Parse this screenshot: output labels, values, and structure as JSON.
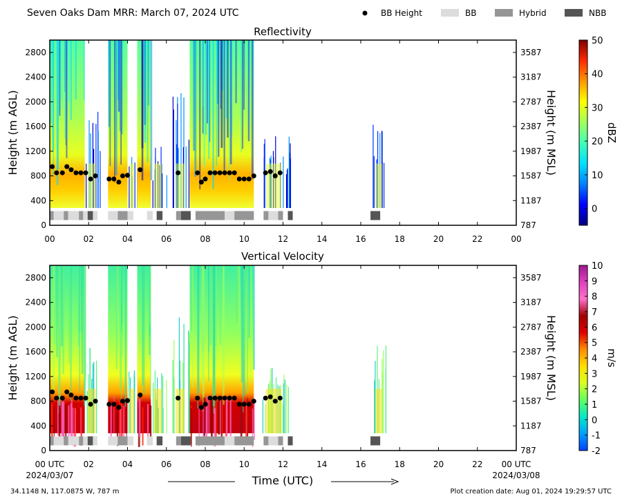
{
  "header": {
    "title": "Seven Oaks Dam MRR:  March 07, 2024 UTC",
    "legend": [
      {
        "label": "BB Height",
        "kind": "dot",
        "color": "#000000"
      },
      {
        "label": "BB",
        "kind": "box",
        "color": "#dcdcdc"
      },
      {
        "label": "Hybrid",
        "kind": "box",
        "color": "#969696"
      },
      {
        "label": "NBB",
        "kind": "box",
        "color": "#555555"
      }
    ]
  },
  "chart_data": [
    {
      "type": "heatmap",
      "title": "Reflectivity",
      "xlabel": "",
      "ylabel": "Height (m AGL)",
      "ylabel_right": "Height (m MSL)",
      "x_ticks": [
        "00",
        "02",
        "04",
        "06",
        "08",
        "10",
        "12",
        "14",
        "16",
        "18",
        "20",
        "22",
        "00"
      ],
      "xlim": [
        0,
        24
      ],
      "ylim": [
        0,
        3000
      ],
      "y_ticks_left": [
        0,
        400,
        800,
        1200,
        1600,
        2000,
        2400,
        2800
      ],
      "y_ticks_right": [
        787,
        1187,
        1587,
        1987,
        2387,
        2787,
        3187,
        3587
      ],
      "colorbar": {
        "label": "dBZ",
        "min": -5,
        "max": 50,
        "ticks": [
          0,
          10,
          20,
          30,
          40,
          50
        ],
        "colors": [
          "#00007f",
          "#0000ff",
          "#0080ff",
          "#00e0ff",
          "#40ffb8",
          "#a0ff5c",
          "#ffff00",
          "#ff9800",
          "#ff2a00",
          "#7f0000"
        ]
      },
      "echo_segments": [
        {
          "start": 0.0,
          "end": 1.8,
          "top": 3000,
          "kind": "dense"
        },
        {
          "start": 1.8,
          "end": 2.6,
          "top": 1850,
          "kind": "sparse"
        },
        {
          "start": 3.0,
          "end": 4.0,
          "top": 3000,
          "kind": "dense"
        },
        {
          "start": 4.0,
          "end": 4.5,
          "top": 1300,
          "kind": "sparse"
        },
        {
          "start": 4.5,
          "end": 5.2,
          "top": 3000,
          "kind": "dense"
        },
        {
          "start": 5.2,
          "end": 6.0,
          "top": 1300,
          "kind": "sparse"
        },
        {
          "start": 6.3,
          "end": 7.2,
          "top": 2300,
          "kind": "sparse"
        },
        {
          "start": 7.2,
          "end": 10.5,
          "top": 3000,
          "kind": "dense"
        },
        {
          "start": 10.8,
          "end": 12.4,
          "top": 1450,
          "kind": "sparse"
        },
        {
          "start": 16.6,
          "end": 17.3,
          "top": 1750,
          "kind": "sparse"
        }
      ]
    },
    {
      "type": "heatmap",
      "title": "Vertical Velocity",
      "xlabel": "Time (UTC)",
      "ylabel": "Height (m AGL)",
      "ylabel_right": "Height (m MSL)",
      "x_ticks": [
        "00 UTC",
        "02",
        "04",
        "06",
        "08",
        "10",
        "12",
        "14",
        "16",
        "18",
        "20",
        "22",
        "00 UTC"
      ],
      "x_dates_start": "2024/03/07",
      "x_dates_end": "2024/03/08",
      "xlim": [
        0,
        24
      ],
      "ylim": [
        0,
        3000
      ],
      "y_ticks_left": [
        0,
        400,
        800,
        1200,
        1600,
        2000,
        2400,
        2800
      ],
      "y_ticks_right": [
        787,
        1187,
        1587,
        1987,
        2387,
        2787,
        3187,
        3587
      ],
      "colorbar": {
        "label": "m/s",
        "min": -2,
        "max": 10,
        "ticks": [
          -2,
          -1,
          0,
          1,
          2,
          3,
          4,
          5,
          6,
          7,
          8,
          9,
          10
        ],
        "colors": [
          "#0040ff",
          "#00a0ff",
          "#00e8c8",
          "#60ff60",
          "#d8ff20",
          "#ffe000",
          "#ff8c00",
          "#e00000",
          "#a00000",
          "#ff70c8",
          "#e040c0",
          "#a01890"
        ]
      }
    }
  ],
  "bb_height": {
    "times": [
      0.13,
      0.35,
      0.65,
      0.88,
      1.1,
      1.35,
      1.6,
      1.85,
      2.1,
      2.35,
      3.05,
      3.3,
      3.55,
      3.75,
      4.0,
      4.65,
      6.6,
      7.6,
      7.8,
      8.0,
      8.25,
      8.5,
      8.75,
      9.0,
      9.25,
      9.5,
      9.75,
      10.0,
      10.25,
      10.5,
      11.1,
      11.35,
      11.6,
      11.85
    ],
    "heights": [
      950,
      850,
      850,
      950,
      900,
      850,
      850,
      850,
      750,
      800,
      750,
      750,
      700,
      800,
      810,
      900,
      850,
      850,
      700,
      750,
      850,
      850,
      850,
      850,
      850,
      850,
      750,
      750,
      750,
      800,
      850,
      870,
      800,
      850
    ]
  },
  "bb_type_segments": [
    {
      "start": 0.0,
      "end": 0.2,
      "type": "Hybrid"
    },
    {
      "start": 0.2,
      "end": 0.72,
      "type": "BB"
    },
    {
      "start": 0.72,
      "end": 0.95,
      "type": "Hybrid"
    },
    {
      "start": 0.95,
      "end": 1.5,
      "type": "BB"
    },
    {
      "start": 1.5,
      "end": 1.72,
      "type": "Hybrid"
    },
    {
      "start": 1.72,
      "end": 1.95,
      "type": "BB"
    },
    {
      "start": 1.95,
      "end": 2.22,
      "type": "NBB"
    },
    {
      "start": 2.22,
      "end": 2.45,
      "type": "BB"
    },
    {
      "start": 3.0,
      "end": 3.5,
      "type": "BB"
    },
    {
      "start": 3.5,
      "end": 4.0,
      "type": "Hybrid"
    },
    {
      "start": 4.0,
      "end": 4.3,
      "type": "BB"
    },
    {
      "start": 5.0,
      "end": 5.3,
      "type": "BB"
    },
    {
      "start": 5.5,
      "end": 5.8,
      "type": "NBB"
    },
    {
      "start": 6.5,
      "end": 6.75,
      "type": "Hybrid"
    },
    {
      "start": 6.75,
      "end": 7.25,
      "type": "NBB"
    },
    {
      "start": 7.5,
      "end": 9.0,
      "type": "Hybrid"
    },
    {
      "start": 9.0,
      "end": 9.5,
      "type": "BB"
    },
    {
      "start": 9.5,
      "end": 10.5,
      "type": "Hybrid"
    },
    {
      "start": 11.0,
      "end": 11.25,
      "type": "Hybrid"
    },
    {
      "start": 11.25,
      "end": 11.75,
      "type": "BB"
    },
    {
      "start": 11.75,
      "end": 12.0,
      "type": "Hybrid"
    },
    {
      "start": 12.25,
      "end": 12.5,
      "type": "NBB"
    },
    {
      "start": 16.5,
      "end": 17.0,
      "type": "NBB"
    }
  ],
  "footer": {
    "location": "34.1148 N, 117.0875 W, 787 m",
    "creation": "Plot creation date: Aug 01, 2024 19:29:57 UTC"
  }
}
